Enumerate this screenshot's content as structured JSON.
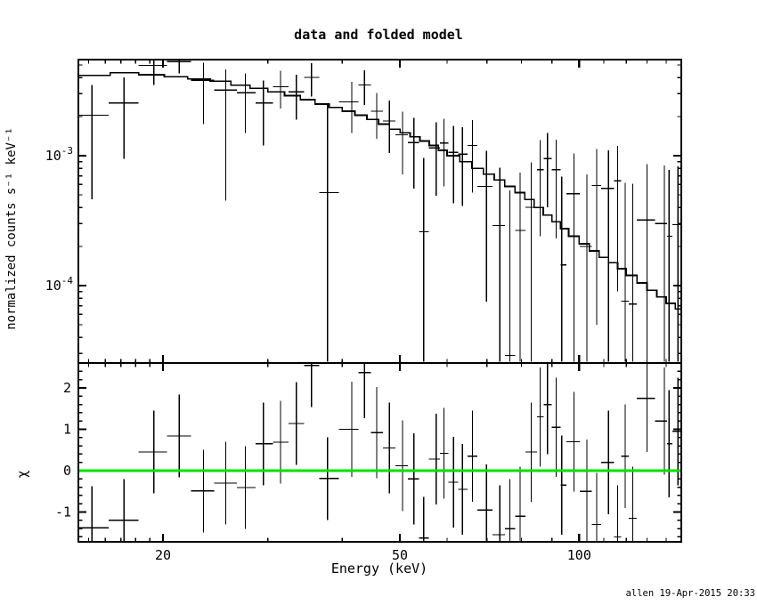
{
  "title": "data and folded model",
  "footer": {
    "timestamp": "allen 19-Apr-2015 20:33"
  },
  "axes": {
    "x_label": "Energy (keV)",
    "y_top_label": "normalized counts s⁻¹ keV⁻¹",
    "y_bottom_label": "χ"
  },
  "colors": {
    "foreground": "#000000",
    "background": "#ffffff",
    "zero_line": "#00e000"
  },
  "chart_data": [
    {
      "type": "scatter",
      "panel": "spectrum",
      "title": "data and folded model",
      "xlabel": "Energy (keV)",
      "ylabel": "normalized counts s⁻¹ keV⁻¹",
      "x_scale": "log",
      "y_scale": "log",
      "xlim": [
        14.4,
        149.5
      ],
      "ylim": [
        2.55e-05,
        0.0055
      ],
      "x_ticks": {
        "major": [
          {
            "value": 20,
            "label": "20"
          },
          {
            "value": 50,
            "label": "50"
          },
          {
            "value": 100,
            "label": "100"
          }
        ],
        "minor": [
          15,
          16,
          17,
          18,
          19,
          30,
          40,
          60,
          70,
          80,
          90,
          110,
          120,
          130,
          140
        ]
      },
      "y_ticks": {
        "major": [
          {
            "value": 0.001,
            "label": "10^-3"
          },
          {
            "value": 0.0001,
            "label": "10^-4"
          }
        ],
        "minor": [
          3e-05,
          4e-05,
          5e-05,
          6e-05,
          7e-05,
          8e-05,
          9e-05,
          0.0002,
          0.0003,
          0.0004,
          0.0005,
          0.0006,
          0.0007,
          0.0008,
          0.0009,
          0.002,
          0.003,
          0.004,
          0.005
        ]
      },
      "model": {
        "name": "folded model (stepped histogram)",
        "bin_edges_keV": [
          14.4,
          16.3,
          18.2,
          20.1,
          22,
          24,
          26,
          28,
          30,
          32,
          34,
          36,
          38,
          40,
          42,
          44,
          46,
          48,
          50,
          52,
          54,
          56,
          58,
          60,
          63,
          66,
          69,
          72,
          75,
          78,
          81,
          84,
          87,
          90,
          93,
          96,
          100,
          104,
          108,
          112,
          116,
          120,
          125,
          130,
          135,
          140,
          145,
          150
        ],
        "values": [
          0.00415,
          0.00435,
          0.0042,
          0.00405,
          0.0039,
          0.00375,
          0.0035,
          0.0033,
          0.0031,
          0.0029,
          0.0027,
          0.0025,
          0.00235,
          0.0022,
          0.00205,
          0.0019,
          0.00175,
          0.0016,
          0.0015,
          0.0014,
          0.0013,
          0.0012,
          0.0011,
          0.001,
          0.0009,
          0.0008,
          0.00072,
          0.00065,
          0.00058,
          0.00052,
          0.00046,
          0.0004,
          0.00035,
          0.00031,
          0.000275,
          0.00024,
          0.00021,
          0.000185,
          0.000165,
          0.00015,
          0.000135,
          0.00012,
          0.000105,
          9.2e-05,
          8.2e-05,
          7.3e-05,
          6.6e-05
        ]
      },
      "points_columns": [
        "e",
        "e_lo",
        "e_hi",
        "v",
        "v_lo",
        "v_hi"
      ],
      "points": [
        [
          15.2,
          14.4,
          16.2,
          0.00205,
          0.00046,
          0.0035
        ],
        [
          17.2,
          16.2,
          18.2,
          0.00255,
          0.00095,
          0.004
        ],
        [
          19.3,
          18.2,
          20.3,
          0.00495,
          0.0035,
          0.00545
        ],
        [
          21.3,
          20.3,
          22.3,
          0.0053,
          0.0043,
          0.0057
        ],
        [
          23.4,
          22.3,
          24.4,
          0.0038,
          0.00175,
          0.0052
        ],
        [
          25.5,
          24.4,
          26.6,
          0.0032,
          0.00045,
          0.0046
        ],
        [
          27.5,
          26.6,
          28.6,
          0.00305,
          0.0015,
          0.0043
        ],
        [
          29.5,
          28.6,
          30.6,
          0.00255,
          0.0012,
          0.0038
        ],
        [
          31.5,
          30.6,
          32.5,
          0.0034,
          0.0023,
          0.0045
        ],
        [
          33.5,
          32.5,
          34.5,
          0.0031,
          0.0019,
          0.0042
        ],
        [
          35.5,
          34.5,
          36.6,
          0.004,
          0.00285,
          0.00515
        ],
        [
          37.8,
          36.6,
          39.5,
          0.00052,
          2.6e-05,
          0.00245
        ],
        [
          41.5,
          39.5,
          42.6,
          0.0026,
          0.0015,
          0.0037
        ],
        [
          43.6,
          42.6,
          44.7,
          0.0035,
          0.00245,
          0.00455
        ],
        [
          45.7,
          44.7,
          46.8,
          0.0022,
          0.00135,
          0.00305
        ],
        [
          48,
          46.8,
          49.1,
          0.00185,
          0.00105,
          0.00265
        ],
        [
          50.5,
          49.1,
          51.6,
          0.00145,
          0.00072,
          0.00218
        ],
        [
          52.8,
          51.6,
          53.8,
          0.00126,
          0.00056,
          0.00196
        ],
        [
          54.8,
          53.8,
          55.9,
          0.00026,
          2.6e-05,
          0.00096
        ],
        [
          57.5,
          55.9,
          58.4,
          0.00115,
          0.00049,
          0.00181
        ],
        [
          59.3,
          58.4,
          60.3,
          0.00125,
          0.00058,
          0.00192
        ],
        [
          61.5,
          60.3,
          62.6,
          0.00106,
          0.00043,
          0.00169
        ],
        [
          63.7,
          62.6,
          64.9,
          0.00103,
          0.00041,
          0.00165
        ],
        [
          66.2,
          64.9,
          67.4,
          0.0012,
          0.00052,
          0.00188
        ],
        [
          69.9,
          67.4,
          71.5,
          0.00058,
          7.5e-05,
          0.00109
        ],
        [
          73.6,
          71.5,
          75,
          0.00029,
          2.6e-05,
          0.00081
        ],
        [
          76.5,
          75,
          78.1,
          2.9e-05,
          2.6e-05,
          0.00054
        ],
        [
          79.6,
          78.1,
          81.2,
          0.000266,
          2.6e-05,
          0.00074
        ],
        [
          83.1,
          81.2,
          84.9,
          0.0004,
          2.6e-05,
          0.00089
        ],
        [
          86,
          84.9,
          87.2,
          0.00078,
          0.00024,
          0.00132
        ],
        [
          88.5,
          87.2,
          90,
          0.00095,
          0.0004,
          0.0015
        ],
        [
          91.5,
          90,
          93,
          0.00078,
          0.00023,
          0.00133
        ],
        [
          93.5,
          93,
          95.2,
          0.000144,
          2.6e-05,
          0.00069
        ],
        [
          98,
          95.2,
          100.3,
          0.00051,
          2.6e-05,
          0.00104
        ],
        [
          103,
          100.3,
          105,
          0.0002,
          2.6e-05,
          0.00072
        ],
        [
          107,
          105,
          108.9,
          0.00059,
          5e-05,
          0.00113
        ],
        [
          112,
          108.9,
          114.5,
          0.00056,
          2.6e-05,
          0.0011
        ],
        [
          116,
          114.5,
          117.7,
          0.00064,
          9e-05,
          0.00119
        ],
        [
          119.5,
          117.7,
          121.2,
          7.6e-05,
          2.6e-05,
          0.00062
        ],
        [
          123,
          121.2,
          125,
          7.2e-05,
          2.6e-05,
          0.00061
        ],
        [
          130,
          125,
          134,
          0.00032,
          2.6e-05,
          0.00086
        ],
        [
          139,
          134,
          140.5,
          0.0003,
          2.6e-05,
          0.00084
        ],
        [
          141.5,
          140.5,
          143.5,
          0.00024,
          2.6e-05,
          0.00078
        ],
        [
          146.5,
          143.5,
          149.5,
          0.000295,
          2.6e-05,
          0.00083
        ]
      ]
    },
    {
      "type": "scatter",
      "panel": "residuals",
      "ylabel": "χ",
      "x_scale": "log",
      "y_scale": "linear",
      "xlim": [
        14.4,
        149.5
      ],
      "ylim": [
        -1.72,
        2.65
      ],
      "y_ticks": {
        "major": [
          {
            "value": -1,
            "label": "-1"
          },
          {
            "value": 0,
            "label": "0"
          },
          {
            "value": 1,
            "label": "1"
          },
          {
            "value": 2,
            "label": "2"
          }
        ],
        "minor_step": 0.2
      },
      "zero_line_value": 0,
      "zero_line_color": "#00e000",
      "points_columns": [
        "e",
        "e_lo",
        "e_hi",
        "chi",
        "chi_lo",
        "chi_hi"
      ],
      "points": [
        [
          15.2,
          14.4,
          16.2,
          -1.38,
          -2.38,
          -0.38
        ],
        [
          17.2,
          16.2,
          18.2,
          -1.2,
          -2.2,
          -0.2
        ],
        [
          19.3,
          18.2,
          20.3,
          0.45,
          -0.55,
          1.45
        ],
        [
          21.3,
          20.3,
          22.3,
          0.84,
          -0.16,
          1.84
        ],
        [
          23.4,
          22.3,
          24.4,
          -0.49,
          -1.49,
          0.51
        ],
        [
          25.5,
          24.4,
          26.6,
          -0.3,
          -1.3,
          0.7
        ],
        [
          27.5,
          26.6,
          28.6,
          -0.41,
          -1.41,
          0.59
        ],
        [
          29.5,
          28.6,
          30.6,
          0.65,
          -0.35,
          1.65
        ],
        [
          31.5,
          30.6,
          32.5,
          0.69,
          -0.31,
          1.69
        ],
        [
          33.5,
          32.5,
          34.5,
          1.14,
          0.14,
          2.14
        ],
        [
          35.5,
          34.5,
          36.6,
          2.54,
          1.54,
          3.54
        ],
        [
          37.8,
          36.6,
          39.5,
          -0.19,
          -1.19,
          0.81
        ],
        [
          41.5,
          39.5,
          42.6,
          1.0,
          -0.15,
          2.15
        ],
        [
          43.6,
          42.6,
          44.7,
          2.37,
          1.27,
          3.47
        ],
        [
          45.7,
          44.7,
          46.8,
          0.92,
          -0.18,
          2.02
        ],
        [
          48,
          46.8,
          49.1,
          0.55,
          -0.55,
          1.65
        ],
        [
          50.5,
          49.1,
          51.6,
          0.12,
          -0.98,
          1.22
        ],
        [
          52.8,
          51.6,
          53.8,
          -0.2,
          -1.3,
          0.9
        ],
        [
          54.8,
          53.8,
          55.9,
          -1.63,
          -2.63,
          -0.63
        ],
        [
          57.5,
          55.9,
          58.4,
          0.28,
          -0.82,
          1.38
        ],
        [
          59.3,
          58.4,
          60.3,
          0.42,
          -0.68,
          1.52
        ],
        [
          61.5,
          60.3,
          62.6,
          -0.28,
          -1.38,
          0.82
        ],
        [
          63.7,
          62.6,
          64.9,
          -0.45,
          -1.55,
          0.65
        ],
        [
          66.2,
          64.9,
          67.4,
          0.35,
          -0.75,
          1.45
        ],
        [
          69.9,
          67.4,
          71.5,
          -0.95,
          -2.05,
          0.15
        ],
        [
          73.6,
          71.5,
          75,
          -1.55,
          -2.75,
          -0.35
        ],
        [
          76.5,
          75,
          78.1,
          -1.4,
          -2.6,
          -0.2
        ],
        [
          79.6,
          78.1,
          81.2,
          -1.1,
          -2.3,
          0.1
        ],
        [
          83.1,
          81.2,
          84.9,
          0.45,
          -0.75,
          1.65
        ],
        [
          86,
          84.9,
          87.2,
          1.3,
          0.1,
          2.5
        ],
        [
          88.5,
          87.2,
          90,
          1.6,
          0.4,
          2.8
        ],
        [
          91.5,
          90,
          93,
          1.05,
          -0.15,
          2.25
        ],
        [
          93.5,
          93,
          95.2,
          -0.35,
          -1.55,
          0.85
        ],
        [
          98,
          95.2,
          100.3,
          0.7,
          -0.5,
          1.9
        ],
        [
          103,
          100.3,
          105,
          -0.5,
          -1.75,
          0.75
        ],
        [
          107,
          105,
          108.9,
          -1.3,
          -2.55,
          -0.05
        ],
        [
          112,
          108.9,
          114.5,
          0.2,
          -1.05,
          1.45
        ],
        [
          116,
          114.5,
          117.7,
          -1.6,
          -2.85,
          -0.35
        ],
        [
          119.5,
          117.7,
          121.2,
          0.35,
          -0.9,
          1.6
        ],
        [
          123,
          121.2,
          125,
          -1.15,
          -2.4,
          0.1
        ],
        [
          130,
          125,
          134,
          1.75,
          0.45,
          3.05
        ],
        [
          139,
          134,
          140.5,
          1.2,
          -0.1,
          2.5
        ],
        [
          141.5,
          140.5,
          143.5,
          0.65,
          -0.65,
          1.95
        ],
        [
          146.5,
          143.5,
          149.5,
          0.95,
          -0.35,
          2.25
        ]
      ]
    }
  ]
}
